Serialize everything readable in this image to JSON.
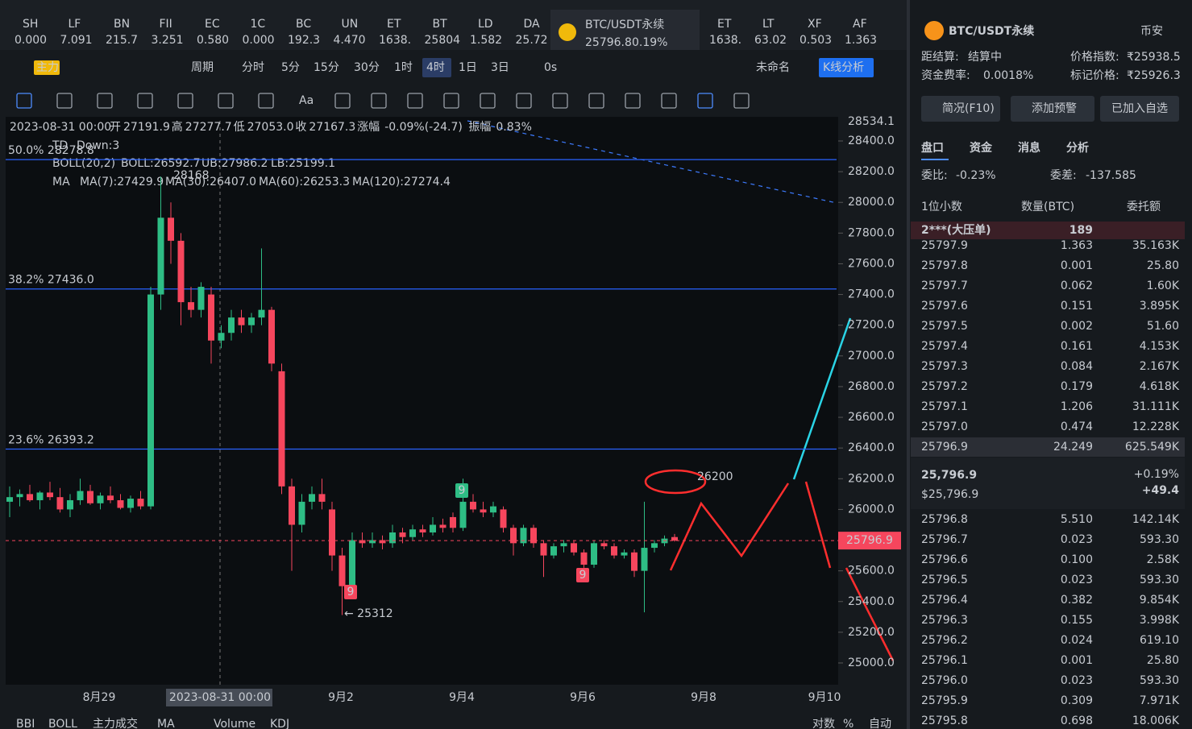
{
  "tabs": [
    {
      "name": "SH",
      "price": "0.000"
    },
    {
      "name": "LF",
      "price": "7.091"
    },
    {
      "name": "BN",
      "price": "215.7"
    },
    {
      "name": "FII",
      "price": "3.251"
    },
    {
      "name": "EC",
      "price": "0.580"
    },
    {
      "name": "1C",
      "price": "0.000"
    },
    {
      "name": "BC",
      "price": "192.3"
    },
    {
      "name": "UN",
      "price": "4.470"
    },
    {
      "name": "ET",
      "price": "1638."
    },
    {
      "name": "BT",
      "price": "25804"
    },
    {
      "name": "LD",
      "price": "1.582"
    },
    {
      "name": "DA",
      "price": "25.72"
    }
  ],
  "active_tab": {
    "name": "BTC/USDT永续",
    "price": "25796.8",
    "change": "0.19%"
  },
  "tabs_right": [
    {
      "name": "ET",
      "price": "1638."
    },
    {
      "name": "LT",
      "price": "63.02"
    },
    {
      "name": "XF",
      "price": "0.503"
    },
    {
      "name": "AF",
      "price": "1.363"
    }
  ],
  "toolbar": {
    "main": "主力",
    "period": "周期",
    "intervals": [
      "分时",
      "5分",
      "15分",
      "30分",
      "1时",
      "4时",
      "1日",
      "3日"
    ],
    "active_interval": 5,
    "countdown": "0s",
    "layout_name": "未命名",
    "analysis": "K线分析",
    "text_tool": "Aa"
  },
  "chart_data": {
    "type": "candlestick",
    "info": [
      {
        "label": "开",
        "value": "27191.9"
      },
      {
        "label": "高",
        "value": "27277.7"
      },
      {
        "label": "低",
        "value": "27053.0"
      },
      {
        "label": "收",
        "value": "27167.3"
      },
      {
        "label": "涨幅",
        "value": "-0.09%(-24.7)"
      },
      {
        "label": "振幅",
        "value": "0.83%"
      }
    ],
    "info_time": "2023-08-31 00:00",
    "td": "TD",
    "td_value": "Down:3",
    "boll": [
      "BOLL(20,2)",
      "BOLL:26592.7",
      "UB:27986.2",
      "LB:25199.1"
    ],
    "ma": [
      "MA",
      "MA(7):27429.9",
      "MA(30):26407.0",
      "MA(60):26253.3",
      "MA(120):27274.4"
    ],
    "fib": [
      {
        "label": "50.0% 28278.8",
        "value": 28278.8
      },
      {
        "label": "38.2% 27436.0",
        "value": 27436.0
      },
      {
        "label": "23.6% 26393.2",
        "value": 26393.2
      }
    ],
    "ylim": [
      25000,
      28400
    ],
    "yticks": [
      {
        "value": 28400,
        "label": "28400.0"
      },
      {
        "value": 28200,
        "label": "28200.0"
      },
      {
        "value": 28000,
        "label": "28000.0"
      },
      {
        "value": 27800,
        "label": "27800.0"
      },
      {
        "value": 27600,
        "label": "27600.0"
      },
      {
        "value": 27400,
        "label": "27400.0"
      },
      {
        "value": 27200,
        "label": "27200.0"
      },
      {
        "value": 27000,
        "label": "27000.0"
      },
      {
        "value": 26800,
        "label": "26800.0"
      },
      {
        "value": 26600,
        "label": "26600.0"
      },
      {
        "value": 26400,
        "label": "26400.0"
      },
      {
        "value": 26200,
        "label": "26200.0"
      },
      {
        "value": 26000,
        "label": "26000.0"
      },
      {
        "value": 25800,
        "label": "25800.0"
      },
      {
        "value": 25600,
        "label": "25600.0"
      },
      {
        "value": 25400,
        "label": "25400.0"
      },
      {
        "value": 25200,
        "label": "25200.0"
      },
      {
        "value": 25000,
        "label": "25000.0"
      }
    ],
    "axis_top": "28534.1",
    "last_price": {
      "value": 25796.9,
      "label": "25796.9"
    },
    "xlabels": [
      "8月29",
      "2023-08-31 00:00",
      "9月2",
      "9月4",
      "9月6",
      "9月8",
      "9月10"
    ],
    "annotations": {
      "high": "28168",
      "low": "← 25312",
      "td_marks": [
        "9",
        "9",
        "9"
      ],
      "target": "26200"
    },
    "ohlc": [
      [
        26050,
        26150,
        25950,
        26080
      ],
      [
        26080,
        26130,
        26020,
        26100
      ],
      [
        26100,
        26160,
        26050,
        26060
      ],
      [
        26060,
        26120,
        26000,
        26110
      ],
      [
        26110,
        26180,
        26060,
        26080
      ],
      [
        26080,
        26140,
        25980,
        26000
      ],
      [
        26000,
        26100,
        25950,
        26060
      ],
      [
        26060,
        26200,
        26030,
        26120
      ],
      [
        26120,
        26160,
        26030,
        26040
      ],
      [
        26040,
        26110,
        26000,
        26090
      ],
      [
        26090,
        26150,
        26040,
        26060
      ],
      [
        26060,
        26100,
        26000,
        26010
      ],
      [
        26010,
        26090,
        25980,
        26070
      ],
      [
        26070,
        26120,
        26000,
        26020
      ],
      [
        26020,
        27450,
        26000,
        27400
      ],
      [
        27400,
        28168,
        27300,
        27900
      ],
      [
        27900,
        28000,
        27600,
        27750
      ],
      [
        27750,
        27800,
        27200,
        27350
      ],
      [
        27350,
        27450,
        27250,
        27300
      ],
      [
        27300,
        27480,
        27250,
        27450
      ],
      [
        27400,
        27450,
        26950,
        27100
      ],
      [
        27100,
        27200,
        27050,
        27150
      ],
      [
        27150,
        27300,
        27100,
        27250
      ],
      [
        27250,
        27300,
        27150,
        27200
      ],
      [
        27200,
        27280,
        27150,
        27250
      ],
      [
        27250,
        27700,
        27200,
        27300
      ],
      [
        27300,
        27320,
        26900,
        26950
      ],
      [
        26900,
        26950,
        26100,
        26150
      ],
      [
        26150,
        26200,
        25600,
        25900
      ],
      [
        25900,
        26100,
        25850,
        26050
      ],
      [
        26050,
        26150,
        26000,
        26100
      ],
      [
        26100,
        26200,
        26000,
        26050
      ],
      [
        26000,
        26050,
        25600,
        25700
      ],
      [
        25700,
        25750,
        25312,
        25500
      ],
      [
        25500,
        25850,
        25450,
        25800
      ],
      [
        25800,
        25850,
        25750,
        25780
      ],
      [
        25780,
        25850,
        25750,
        25800
      ],
      [
        25800,
        25830,
        25740,
        25780
      ],
      [
        25780,
        25900,
        25750,
        25850
      ],
      [
        25850,
        25880,
        25780,
        25820
      ],
      [
        25820,
        25900,
        25800,
        25870
      ],
      [
        25870,
        25900,
        25820,
        25850
      ],
      [
        25850,
        25950,
        25830,
        25900
      ],
      [
        25900,
        25940,
        25850,
        25880
      ],
      [
        25950,
        25980,
        25850,
        25880
      ],
      [
        25880,
        26200,
        25860,
        26050
      ],
      [
        26050,
        26100,
        25980,
        26000
      ],
      [
        26000,
        26050,
        25950,
        25980
      ],
      [
        25980,
        26050,
        25950,
        26020
      ],
      [
        26000,
        26020,
        25850,
        25880
      ],
      [
        25880,
        25900,
        25700,
        25780
      ],
      [
        25780,
        25900,
        25760,
        25880
      ],
      [
        25880,
        25900,
        25750,
        25780
      ],
      [
        25780,
        25800,
        25560,
        25700
      ],
      [
        25700,
        25780,
        25680,
        25760
      ],
      [
        25760,
        25800,
        25720,
        25780
      ],
      [
        25780,
        25800,
        25700,
        25720
      ],
      [
        25720,
        25740,
        25620,
        25640
      ],
      [
        25640,
        25800,
        25620,
        25780
      ],
      [
        25780,
        25800,
        25740,
        25760
      ],
      [
        25760,
        25780,
        25680,
        25700
      ],
      [
        25700,
        25740,
        25680,
        25720
      ],
      [
        25720,
        25740,
        25560,
        25600
      ],
      [
        25600,
        26050,
        25330,
        25750
      ],
      [
        25750,
        25800,
        25720,
        25780
      ],
      [
        25780,
        25830,
        25760,
        25810
      ],
      [
        25820,
        25840,
        25790,
        25797
      ]
    ]
  },
  "bottom_bar": [
    "BBI",
    "BOLL",
    "主力成交",
    "MA",
    "Volume",
    "KDJ"
  ],
  "bottom_right": [
    "对数",
    "%",
    "自动"
  ],
  "panel": {
    "symbol": "BTC/USDT永续",
    "exchange": "币安",
    "stats": [
      {
        "label": "距结算:",
        "value": "结算中"
      },
      {
        "label": "价格指数:",
        "value": "₹25938.5"
      },
      {
        "label": "资金费率:",
        "value": "0.0018%"
      },
      {
        "label": "标记价格:",
        "value": "₹25926.3"
      }
    ],
    "buttons": [
      "简况(F10)",
      "添加预警",
      "已加入自选"
    ],
    "tabs": [
      "盘口",
      "资金",
      "消息",
      "分析"
    ],
    "ratio": {
      "label": "委比:",
      "value": "-0.23%"
    },
    "diff": {
      "label": "委差:",
      "value": "-137.585"
    },
    "columns": [
      "1位小数",
      "数量(BTC)",
      "委托额"
    ],
    "big_order": {
      "label": "2***(大压单)",
      "value": "189"
    },
    "asks": [
      [
        "25797.9",
        "1.363",
        "35.163K"
      ],
      [
        "25797.8",
        "0.001",
        "25.80"
      ],
      [
        "25797.7",
        "0.062",
        "1.60K"
      ],
      [
        "25797.6",
        "0.151",
        "3.895K"
      ],
      [
        "25797.5",
        "0.002",
        "51.60"
      ],
      [
        "25797.4",
        "0.161",
        "4.153K"
      ],
      [
        "25797.3",
        "0.084",
        "2.167K"
      ],
      [
        "25797.2",
        "0.179",
        "4.618K"
      ],
      [
        "25797.1",
        "1.206",
        "31.111K"
      ],
      [
        "25797.0",
        "0.474",
        "12.228K"
      ],
      [
        "25796.9",
        "24.249",
        "625.549K"
      ]
    ],
    "last": {
      "price": "25,796.9",
      "usd": "$25,796.9",
      "change_pct": "+0.19%",
      "change": "+49.4"
    },
    "bids": [
      [
        "25796.8",
        "5.510",
        "142.14K"
      ],
      [
        "25796.7",
        "0.023",
        "593.30"
      ],
      [
        "25796.6",
        "0.100",
        "2.58K"
      ],
      [
        "25796.5",
        "0.023",
        "593.30"
      ],
      [
        "25796.4",
        "0.382",
        "9.854K"
      ],
      [
        "25796.3",
        "0.155",
        "3.998K"
      ],
      [
        "25796.2",
        "0.024",
        "619.10"
      ],
      [
        "25796.1",
        "0.001",
        "25.80"
      ],
      [
        "25796.0",
        "0.023",
        "593.30"
      ],
      [
        "25795.9",
        "0.309",
        "7.971K"
      ],
      [
        "25795.8",
        "0.698",
        "18.006K"
      ]
    ]
  }
}
